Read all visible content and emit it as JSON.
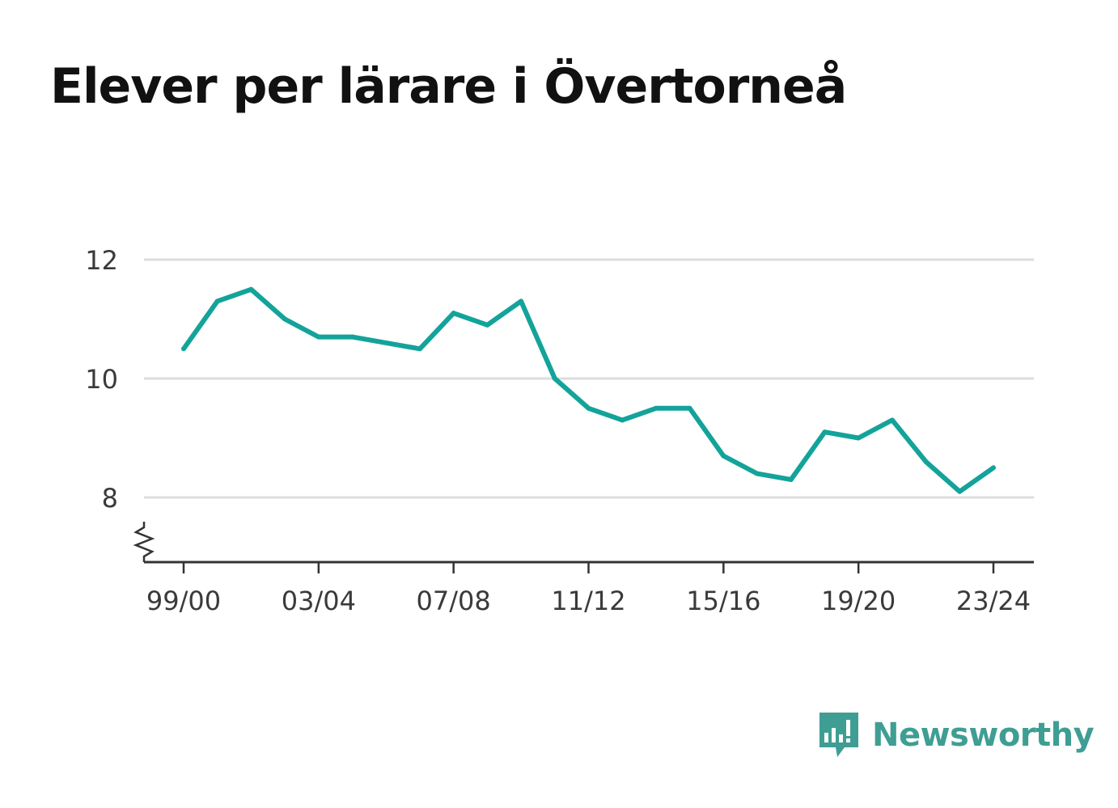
{
  "title": "Elever per lärare i Övertorneå",
  "brand": {
    "name": "Newsworthy",
    "icon": "newsworthy-logo-icon",
    "color": "#3f9e93"
  },
  "chart_data": {
    "type": "line",
    "x": [
      "99/00",
      "00/01",
      "01/02",
      "02/03",
      "03/04",
      "04/05",
      "05/06",
      "06/07",
      "07/08",
      "08/09",
      "09/10",
      "10/11",
      "11/12",
      "12/13",
      "13/14",
      "14/15",
      "15/16",
      "16/17",
      "17/18",
      "18/19",
      "19/20",
      "20/21",
      "21/22",
      "22/23",
      "23/24"
    ],
    "series": [
      {
        "values": [
          10.5,
          11.3,
          11.5,
          11.0,
          10.7,
          10.7,
          10.6,
          10.5,
          11.1,
          10.9,
          11.3,
          10.0,
          9.5,
          9.3,
          9.5,
          9.5,
          8.7,
          8.4,
          8.3,
          9.1,
          9.0,
          9.3,
          8.6,
          8.1,
          8.5
        ],
        "color": "#13a39a"
      }
    ],
    "xticks": [
      "99/00",
      "03/04",
      "07/08",
      "11/12",
      "15/16",
      "19/20",
      "23/24"
    ],
    "yticks": [
      8,
      10,
      12
    ],
    "ylim": [
      6.9,
      12.3
    ],
    "axis_break": true,
    "grid": true,
    "xlabel": "",
    "ylabel": ""
  }
}
